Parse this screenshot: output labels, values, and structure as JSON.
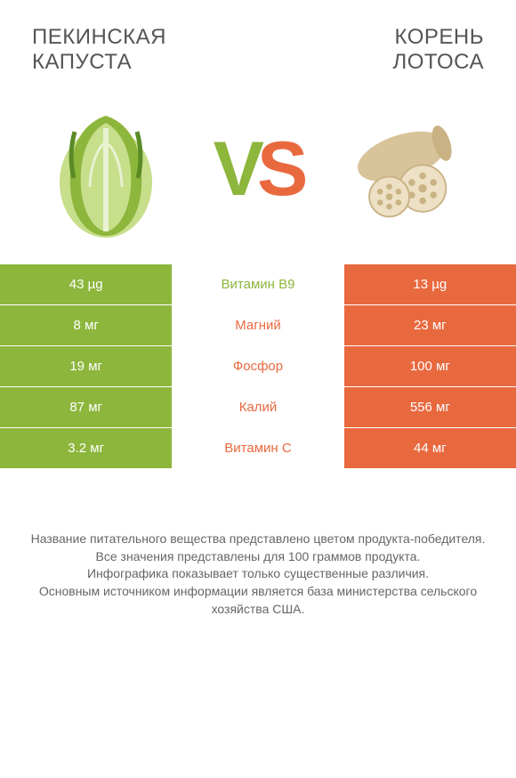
{
  "header": {
    "left_title_line1": "ПЕКИНСКАЯ",
    "left_title_line2": "КАПУСТА",
    "right_title_line1": "КОРЕНЬ",
    "right_title_line2": "ЛОТОСА"
  },
  "vs": {
    "v": "V",
    "s": "S"
  },
  "colors": {
    "green": "#8db63c",
    "orange": "#e9693f",
    "bg": "#ffffff",
    "text": "#555"
  },
  "rows": [
    {
      "left": "43 µg",
      "label": "Витамин B9",
      "right": "13 µg",
      "winner": "green"
    },
    {
      "left": "8 мг",
      "label": "Магний",
      "right": "23 мг",
      "winner": "orange"
    },
    {
      "left": "19 мг",
      "label": "Фосфор",
      "right": "100 мг",
      "winner": "orange"
    },
    {
      "left": "87 мг",
      "label": "Калий",
      "right": "556 мг",
      "winner": "orange"
    },
    {
      "left": "3.2 мг",
      "label": "Витамин C",
      "right": "44 мг",
      "winner": "orange"
    }
  ],
  "notes": {
    "line1": "Название питательного вещества представлено цветом продукта-победителя.",
    "line2": "Все значения представлены для 100 граммов продукта.",
    "line3": "Инфографика показывает только существенные различия.",
    "line4": "Основным источником информации является база министерства сельского хозяйства США."
  },
  "illustration": {
    "cabbage": {
      "leaf_color": "#6a9b2f",
      "body_color": "#c7de8b",
      "vein_color": "#e8f2d1"
    },
    "lotus": {
      "root_color": "#d8c39a",
      "slice_fill": "#ede0c4",
      "hole_color": "#c9b284"
    }
  }
}
